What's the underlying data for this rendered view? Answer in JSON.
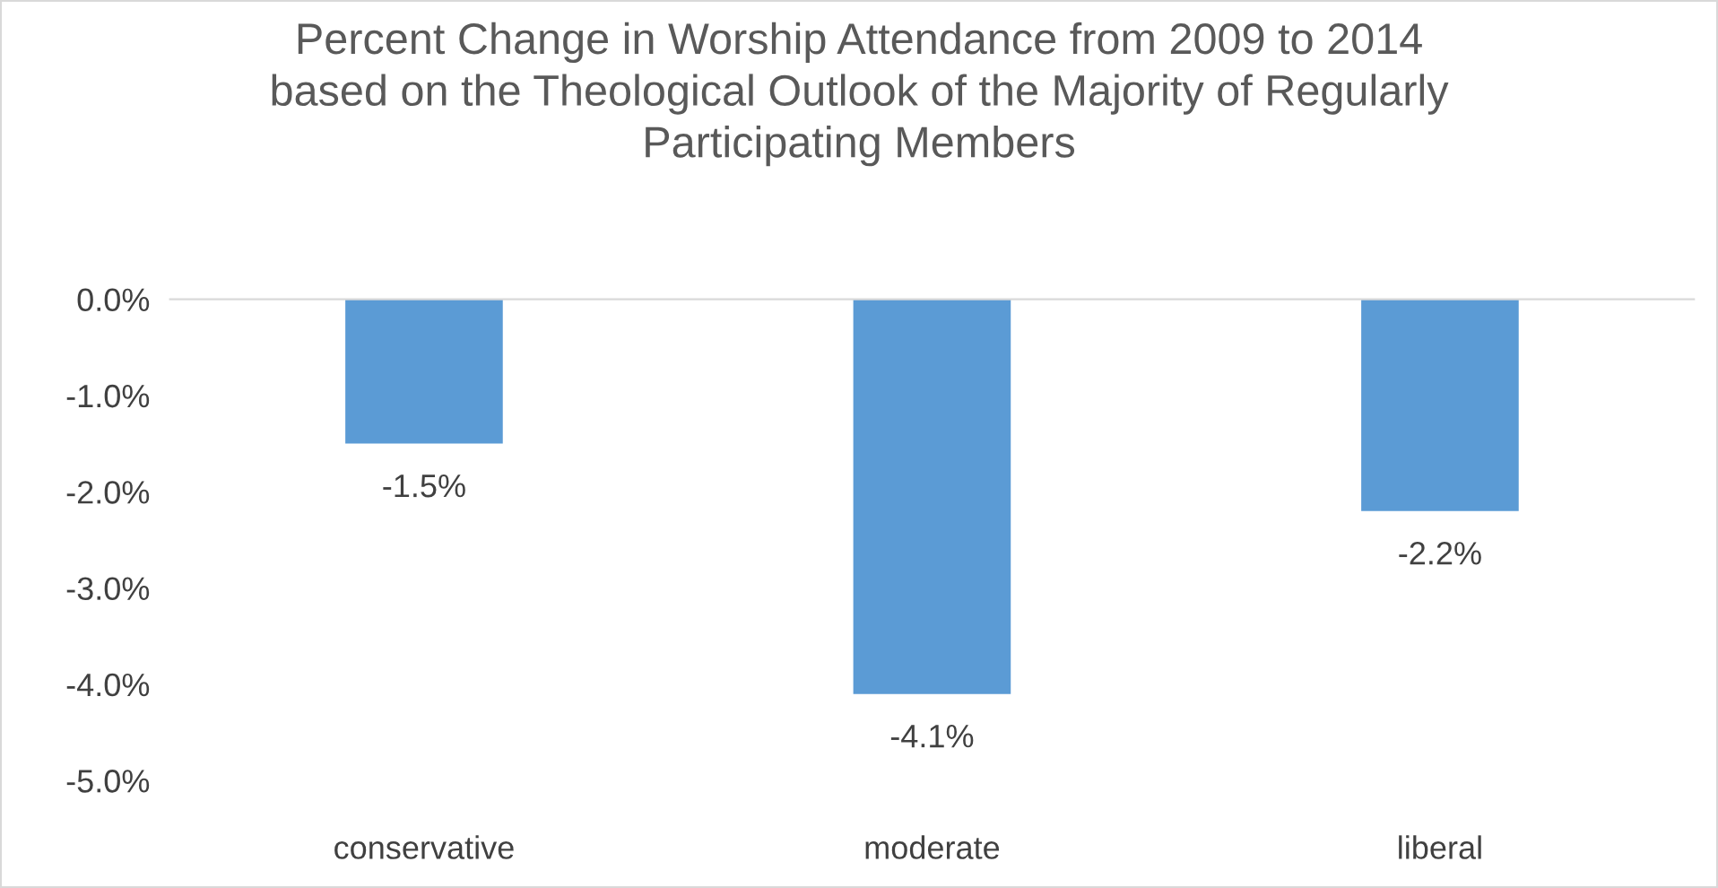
{
  "chart_data": {
    "type": "bar",
    "title": "Percent Change in Worship Attendance from 2009 to 2014\nbased on the Theological Outlook of the Majority of Regularly\nParticipating Members",
    "categories": [
      "conservative",
      "moderate",
      "liberal"
    ],
    "values": [
      -1.5,
      -4.1,
      -2.2
    ],
    "color": "#5b9bd5",
    "value_labels": [
      "-1.5%",
      "-4.1%",
      "-2.2%"
    ],
    "ylim": [
      -5.0,
      0.0
    ],
    "yticks": [
      {
        "value": 0,
        "label": "0.0%"
      },
      {
        "value": -1,
        "label": "-1.0%"
      },
      {
        "value": -2,
        "label": "-2.0%"
      },
      {
        "value": -3,
        "label": "-3.0%"
      },
      {
        "value": -4,
        "label": "-4.0%"
      },
      {
        "value": -5,
        "label": "-5.0%"
      }
    ],
    "grid": false,
    "legend": false
  }
}
